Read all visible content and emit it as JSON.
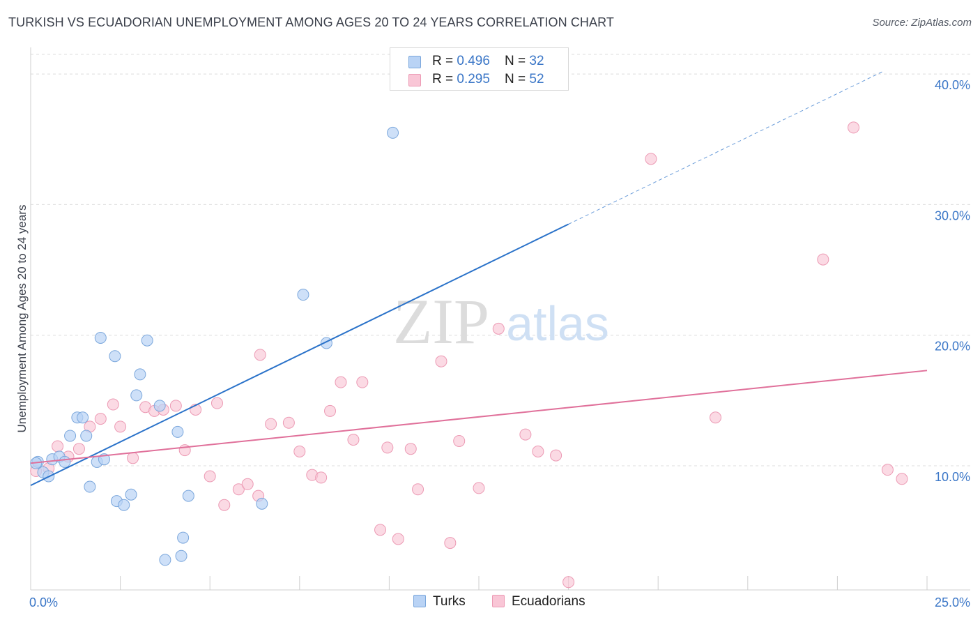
{
  "header": {
    "title": "TURKISH VS ECUADORIAN UNEMPLOYMENT AMONG AGES 20 TO 24 YEARS CORRELATION CHART",
    "source": "Source: ZipAtlas.com"
  },
  "watermark": {
    "zip": "ZIP",
    "atlas": "atlas"
  },
  "legend": {
    "rows": [
      {
        "r_label": "R = ",
        "r_value": "0.496",
        "n_label": "N = ",
        "n_value": "32"
      },
      {
        "r_label": "R = ",
        "r_value": "0.295",
        "n_label": "N = ",
        "n_value": "52"
      }
    ]
  },
  "colors": {
    "turks_fill": "#b9d3f5",
    "turks_stroke": "#7ba7dc",
    "turks_line": "#2a72c9",
    "ecu_fill": "#f9c6d6",
    "ecu_stroke": "#ec9ab4",
    "ecu_line": "#e0709a",
    "axis_label": "#3a76c7",
    "grid": "#dcdcdc"
  },
  "chart_data": {
    "type": "scatter",
    "title": "TURKISH VS ECUADORIAN UNEMPLOYMENT AMONG AGES 20 TO 24 YEARS CORRELATION CHART",
    "xlabel": "",
    "ylabel": "Unemployment Among Ages 20 to 24 years",
    "xlim": [
      0,
      25
    ],
    "ylim": [
      0.5,
      41.5
    ],
    "x_tick_labels": [
      {
        "value": 0,
        "label": "0.0%"
      },
      {
        "value": 25,
        "label": "25.0%"
      }
    ],
    "y_tick_labels": [
      {
        "value": 10,
        "label": "10.0%"
      },
      {
        "value": 20,
        "label": "20.0%"
      },
      {
        "value": 30,
        "label": "30.0%"
      },
      {
        "value": 40,
        "label": "40.0%"
      }
    ],
    "series": [
      {
        "name": "Turks",
        "r": 0.496,
        "n": 32,
        "trend": {
          "x0": 0,
          "y0": 8.5,
          "x1": 15,
          "y1": 28.5,
          "dash_to_x": 23.8
        },
        "points": [
          [
            0.2,
            10.3
          ],
          [
            0.35,
            9.5
          ],
          [
            0.5,
            9.2
          ],
          [
            0.6,
            10.5
          ],
          [
            0.8,
            10.7
          ],
          [
            0.95,
            10.3
          ],
          [
            1.1,
            12.3
          ],
          [
            1.3,
            13.7
          ],
          [
            1.45,
            13.7
          ],
          [
            1.55,
            12.3
          ],
          [
            1.65,
            8.4
          ],
          [
            1.85,
            10.3
          ],
          [
            1.95,
            19.8
          ],
          [
            2.05,
            10.5
          ],
          [
            2.35,
            18.4
          ],
          [
            2.4,
            7.3
          ],
          [
            2.6,
            7.0
          ],
          [
            2.8,
            7.8
          ],
          [
            2.95,
            15.4
          ],
          [
            3.05,
            17.0
          ],
          [
            3.25,
            19.6
          ],
          [
            3.6,
            14.6
          ],
          [
            3.75,
            2.8
          ],
          [
            4.1,
            12.6
          ],
          [
            4.2,
            3.1
          ],
          [
            4.25,
            4.5
          ],
          [
            4.4,
            7.7
          ],
          [
            6.45,
            7.1
          ],
          [
            7.6,
            23.1
          ],
          [
            8.25,
            19.4
          ],
          [
            10.1,
            35.5
          ],
          [
            0.15,
            10.2
          ]
        ]
      },
      {
        "name": "Ecuadorians",
        "r": 0.295,
        "n": 52,
        "trend": {
          "x0": 0,
          "y0": 10.2,
          "x1": 25,
          "y1": 17.3
        },
        "points": [
          [
            0.15,
            9.6
          ],
          [
            0.5,
            9.8
          ],
          [
            0.75,
            11.5
          ],
          [
            1.05,
            10.7
          ],
          [
            1.35,
            11.3
          ],
          [
            1.65,
            13.0
          ],
          [
            1.95,
            13.6
          ],
          [
            2.3,
            14.7
          ],
          [
            2.5,
            13.0
          ],
          [
            2.85,
            10.6
          ],
          [
            3.2,
            14.5
          ],
          [
            3.45,
            14.2
          ],
          [
            3.7,
            14.3
          ],
          [
            4.05,
            14.6
          ],
          [
            4.3,
            11.2
          ],
          [
            4.6,
            14.3
          ],
          [
            5.0,
            9.2
          ],
          [
            5.2,
            14.8
          ],
          [
            5.4,
            7.0
          ],
          [
            5.8,
            8.2
          ],
          [
            6.05,
            8.6
          ],
          [
            6.35,
            7.7
          ],
          [
            6.4,
            18.5
          ],
          [
            6.7,
            13.2
          ],
          [
            7.2,
            13.3
          ],
          [
            7.5,
            11.1
          ],
          [
            7.85,
            9.3
          ],
          [
            8.1,
            9.1
          ],
          [
            8.35,
            14.2
          ],
          [
            8.65,
            16.4
          ],
          [
            9.0,
            12.0
          ],
          [
            9.25,
            16.4
          ],
          [
            9.75,
            5.1
          ],
          [
            9.95,
            11.4
          ],
          [
            10.25,
            4.4
          ],
          [
            10.6,
            11.3
          ],
          [
            10.8,
            8.2
          ],
          [
            11.45,
            18.0
          ],
          [
            11.7,
            4.1
          ],
          [
            11.95,
            11.9
          ],
          [
            12.5,
            8.3
          ],
          [
            13.05,
            20.5
          ],
          [
            13.8,
            12.4
          ],
          [
            14.15,
            11.1
          ],
          [
            14.65,
            10.8
          ],
          [
            15.0,
            1.1
          ],
          [
            17.3,
            33.5
          ],
          [
            19.1,
            13.7
          ],
          [
            22.1,
            25.8
          ],
          [
            22.95,
            35.9
          ],
          [
            23.9,
            9.7
          ],
          [
            24.3,
            9.0
          ]
        ]
      }
    ]
  }
}
